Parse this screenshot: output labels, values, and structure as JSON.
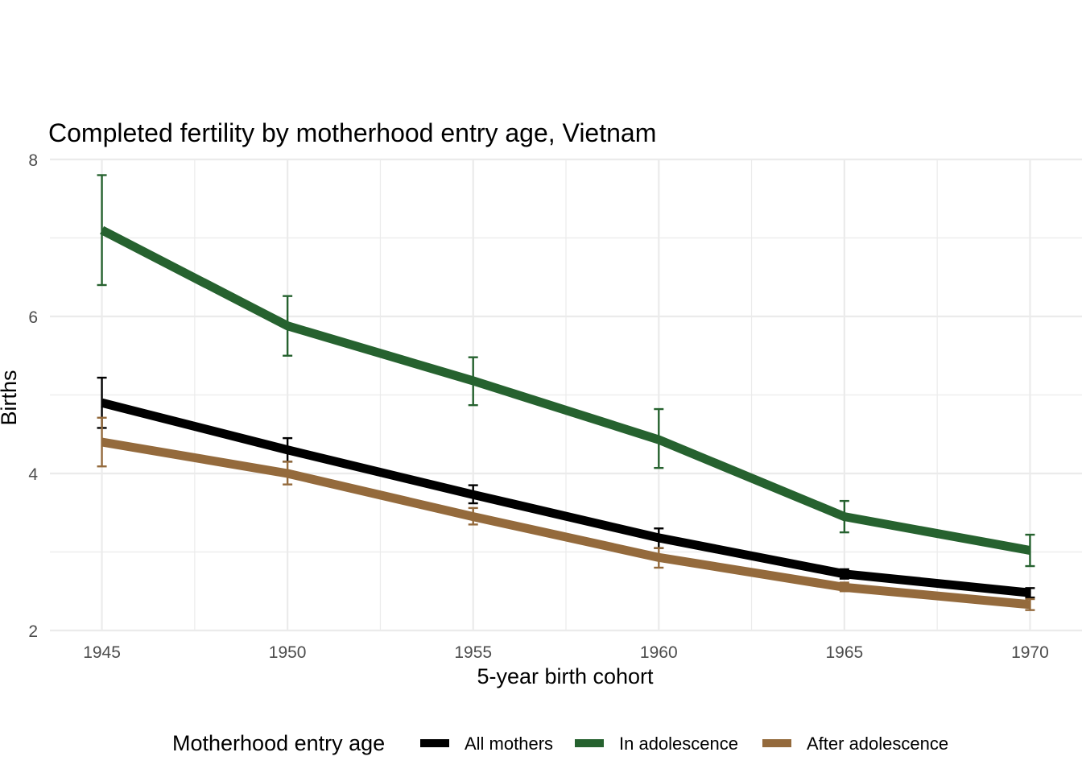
{
  "chart_data": {
    "type": "line",
    "title": "Completed fertility by motherhood entry age,  Vietnam",
    "xlabel": "5-year birth cohort",
    "ylabel": "Births",
    "x": [
      1945,
      1950,
      1955,
      1960,
      1965,
      1970
    ],
    "xlim": [
      1943.6,
      1971.4
    ],
    "ylim": [
      2,
      8
    ],
    "yticks": [
      2,
      4,
      6,
      8
    ],
    "grid": true,
    "legend": {
      "title": "Motherhood entry age",
      "position": "bottom"
    },
    "series": [
      {
        "name": "All mothers",
        "color": "#000000",
        "values": [
          4.9,
          4.3,
          3.73,
          3.18,
          2.72,
          2.48
        ],
        "lower": [
          4.58,
          4.15,
          3.62,
          3.05,
          2.66,
          2.42
        ],
        "upper": [
          5.22,
          4.45,
          3.85,
          3.3,
          2.78,
          2.54
        ]
      },
      {
        "name": "In adolescence",
        "color": "#26622f",
        "values": [
          7.1,
          5.88,
          5.18,
          4.43,
          3.45,
          3.02
        ],
        "lower": [
          6.4,
          5.5,
          4.87,
          4.07,
          3.25,
          2.82
        ],
        "upper": [
          7.8,
          6.26,
          5.48,
          4.82,
          3.65,
          3.22
        ]
      },
      {
        "name": "After adolescence",
        "color": "#946a3c",
        "values": [
          4.4,
          4.0,
          3.45,
          2.93,
          2.55,
          2.33
        ],
        "lower": [
          4.09,
          3.86,
          3.35,
          2.8,
          2.5,
          2.26
        ],
        "upper": [
          4.71,
          4.15,
          3.56,
          3.05,
          2.61,
          2.4
        ]
      }
    ]
  }
}
